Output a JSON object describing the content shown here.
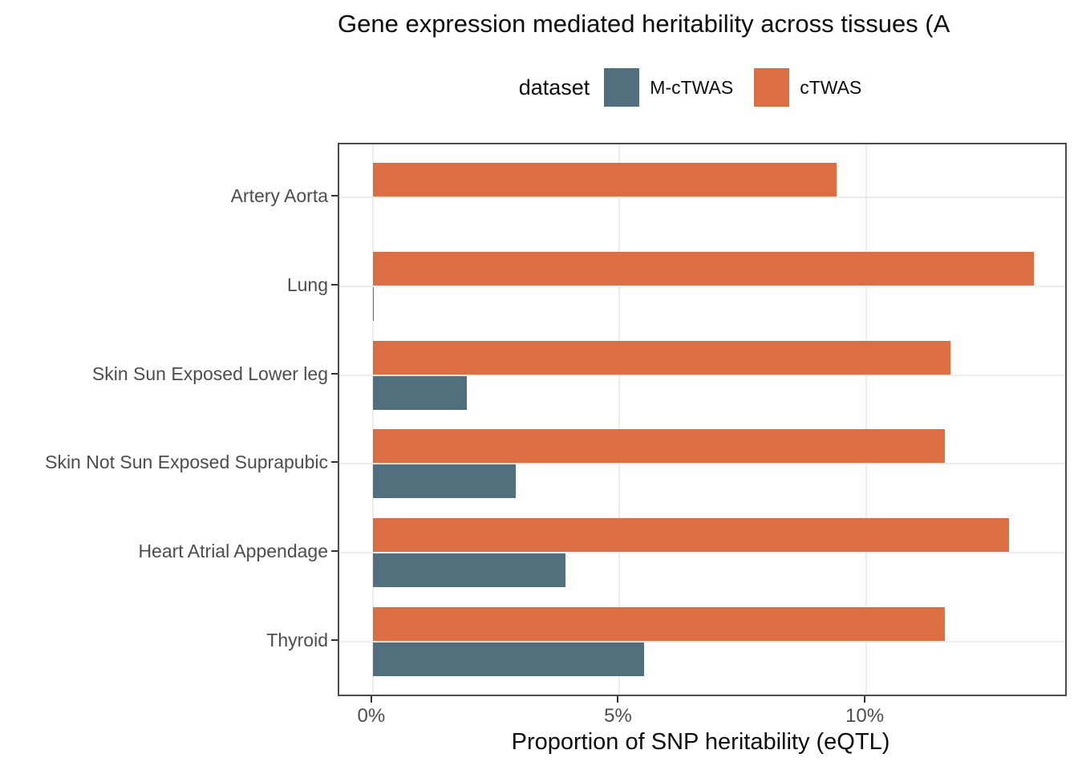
{
  "title": "Gene expression mediated heritability across tissues (A",
  "legend": {
    "title": "dataset",
    "items": [
      {
        "label": "M-cTWAS",
        "color": "#516F7D"
      },
      {
        "label": "cTWAS",
        "color": "#DC6E43"
      }
    ]
  },
  "colors": {
    "grid": "#ececec",
    "panel_border": "#4b4b4b",
    "tick": "#333333",
    "axis_text": "#4d4d4d",
    "title_text": "#0d0d0d",
    "mctwas": "#516F7D",
    "ctwas": "#DC6E43"
  },
  "chart_data": {
    "type": "bar",
    "orientation": "horizontal",
    "title": "Gene expression mediated heritability across tissues (A",
    "xlabel": "Proportion of SNP heritability (eQTL)",
    "ylabel": "",
    "units": "percent",
    "categories": [
      "Artery Aorta",
      "Lung",
      "Skin Sun Exposed Lower leg",
      "Skin Not Sun Exposed Suprapubic",
      "Heart Atrial Appendage",
      "Thyroid"
    ],
    "series": [
      {
        "name": "M-cTWAS",
        "color": "#516F7D",
        "values": [
          0,
          0.02,
          1.9,
          2.9,
          3.9,
          5.5
        ]
      },
      {
        "name": "cTWAS",
        "color": "#DC6E43",
        "values": [
          9.4,
          13.4,
          11.7,
          11.6,
          12.9,
          11.6
        ]
      }
    ],
    "x_ticks": [
      {
        "value": 0,
        "label": "0%"
      },
      {
        "value": 5,
        "label": "5%"
      },
      {
        "value": 10,
        "label": "10%"
      }
    ],
    "xlim": [
      -0.68,
      14.03
    ],
    "grid": "major-only",
    "legend_position": "top",
    "bar_order_top_to_bottom": [
      "cTWAS",
      "M-cTWAS"
    ]
  }
}
